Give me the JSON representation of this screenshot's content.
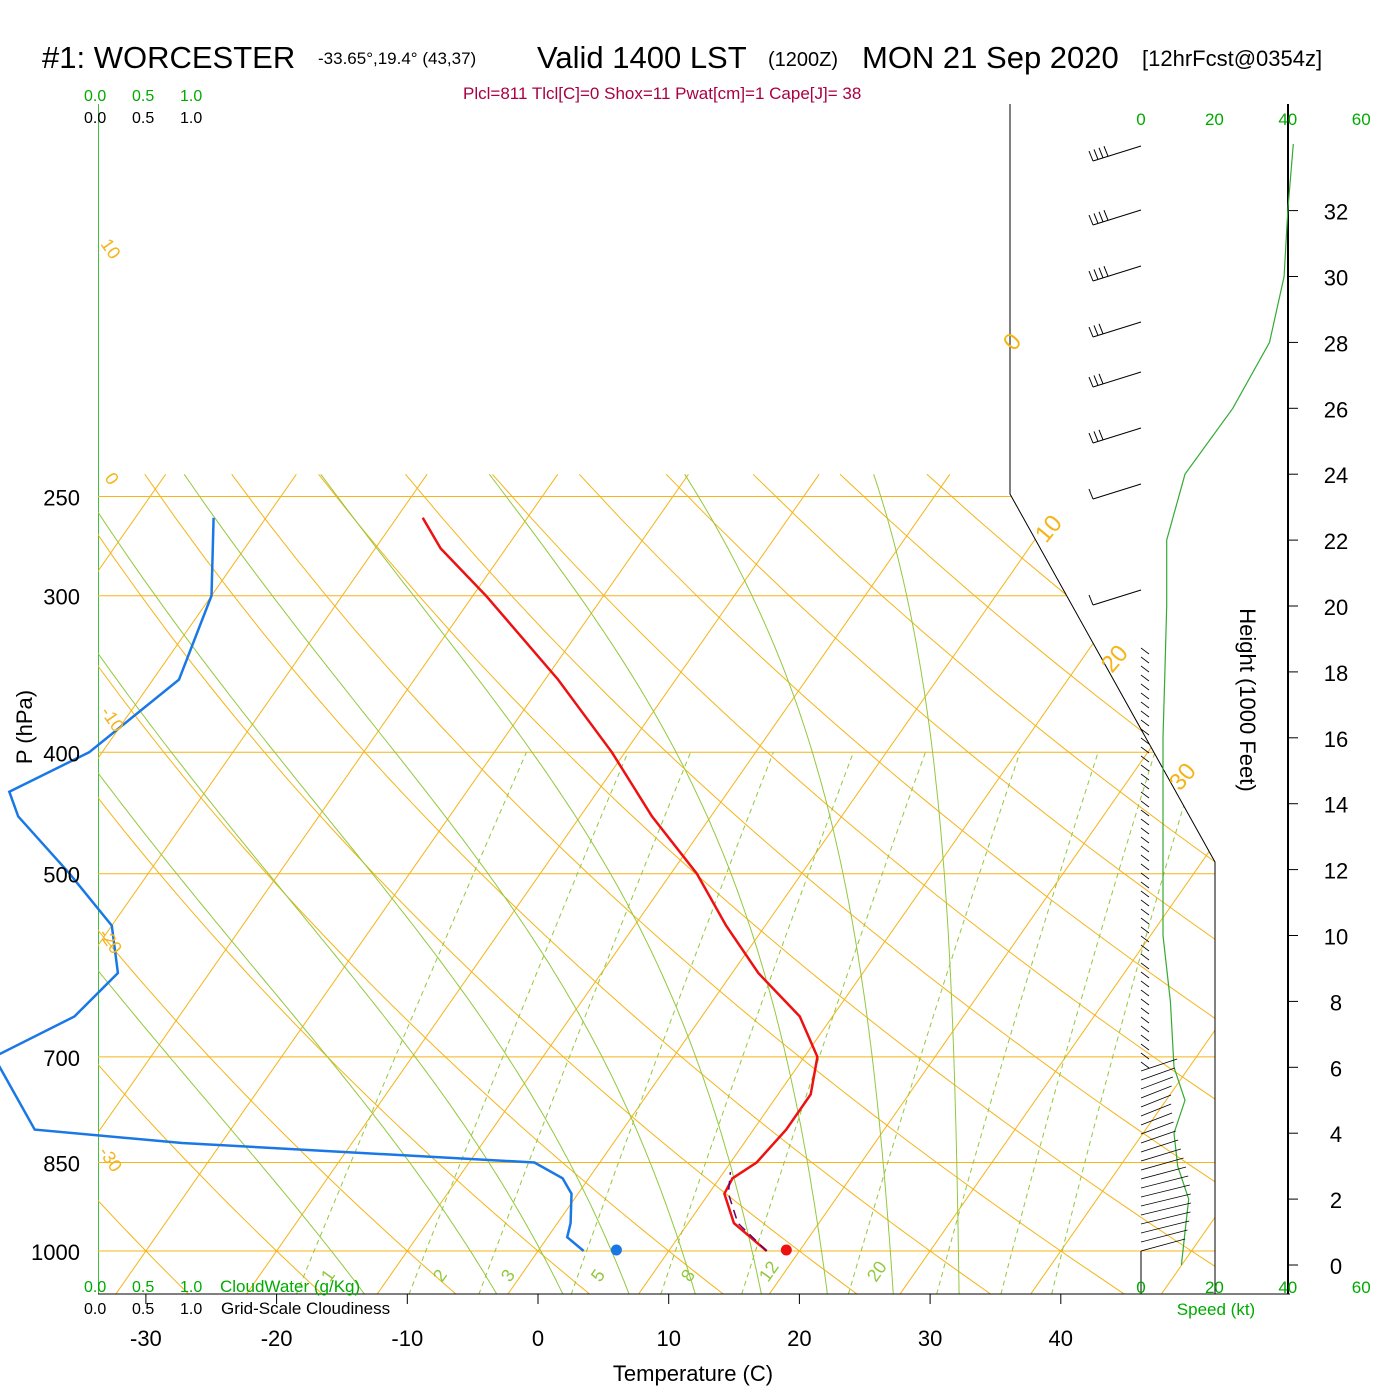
{
  "header": {
    "station": "#1: WORCESTER",
    "coords": "-33.65°,19.4° (43,37)",
    "valid": "Valid 1400 LST",
    "utc": "(1200Z)",
    "date": "MON 21 Sep 2020",
    "forecast": "[12hrFcst@0354z]",
    "indices": "Plcl=811 Tlcl[C]=0 Shox=11 Pwat[cm]=1 Cape[J]= 38"
  },
  "axes": {
    "xlabel": "Temperature (C)",
    "ylabel": "P (hPa)",
    "height_label": "Height (1000 Feet)",
    "speed_label": "Speed (kt)",
    "cloudwater_label": "CloudWater (g/Kg)",
    "cloudiness_label": "Grid-Scale Cloudiness",
    "cloud_ticks": [
      "0.0",
      "0.5",
      "1.0"
    ],
    "x_ticks": [
      "-30",
      "-20",
      "-10",
      "0",
      "10",
      "20",
      "30",
      "40"
    ],
    "p_ticks": [
      "250",
      "300",
      "400",
      "500",
      "700",
      "850",
      "1000"
    ],
    "height_ticks": [
      "0",
      "2",
      "4",
      "6",
      "8",
      "10",
      "12",
      "14",
      "16",
      "18",
      "20",
      "22",
      "24",
      "26",
      "28",
      "30",
      "32"
    ],
    "speed_ticks": [
      "0",
      "20",
      "40",
      "60"
    ],
    "isotherm_labels": [
      "10",
      "0",
      "-10",
      "-20",
      "-30",
      "0",
      "10",
      "20",
      "30"
    ],
    "mixratio_labels": [
      "1",
      "2",
      "3",
      "5",
      "8",
      "12",
      "20"
    ]
  },
  "chart_data": {
    "type": "skew-t",
    "title": "#1: WORCESTER Valid 1400 LST (1200Z) MON 21 Sep 2020",
    "pressure_range_hPa": [
      1000,
      250
    ],
    "temperature_range_C": [
      -33,
      36
    ],
    "temperature_profile": [
      {
        "p": 1000,
        "t": 17.5
      },
      {
        "p": 950,
        "t": 13.5
      },
      {
        "p": 900,
        "t": 11.2
      },
      {
        "p": 875,
        "t": 11.0
      },
      {
        "p": 850,
        "t": 12.0
      },
      {
        "p": 800,
        "t": 12.5
      },
      {
        "p": 750,
        "t": 12.5
      },
      {
        "p": 700,
        "t": 11.0
      },
      {
        "p": 650,
        "t": 7.5
      },
      {
        "p": 600,
        "t": 2.0
      },
      {
        "p": 550,
        "t": -3.0
      },
      {
        "p": 500,
        "t": -8.0
      },
      {
        "p": 450,
        "t": -14.5
      },
      {
        "p": 400,
        "t": -21.0
      },
      {
        "p": 350,
        "t": -29.0
      },
      {
        "p": 300,
        "t": -39.0
      },
      {
        "p": 275,
        "t": -45.0
      },
      {
        "p": 260,
        "t": -48.0
      }
    ],
    "dewpoint_profile": [
      {
        "p": 1000,
        "t": 3.5
      },
      {
        "p": 975,
        "t": 1.5
      },
      {
        "p": 950,
        "t": 1.0
      },
      {
        "p": 900,
        "t": -0.5
      },
      {
        "p": 875,
        "t": -2.0
      },
      {
        "p": 850,
        "t": -5.0
      },
      {
        "p": 820,
        "t": -33.0
      },
      {
        "p": 800,
        "t": -45.0
      },
      {
        "p": 700,
        "t": -52.0
      },
      {
        "p": 650,
        "t": -48.0
      },
      {
        "p": 600,
        "t": -47.0
      },
      {
        "p": 550,
        "t": -50.0
      },
      {
        "p": 500,
        "t": -56.0
      },
      {
        "p": 450,
        "t": -63.0
      },
      {
        "p": 430,
        "t": -65.0
      },
      {
        "p": 400,
        "t": -61.0
      },
      {
        "p": 350,
        "t": -58.0
      },
      {
        "p": 300,
        "t": -60.0
      },
      {
        "p": 260,
        "t": -64.0
      }
    ],
    "parcel_path": [
      {
        "p": 1000,
        "t": 17.5
      },
      {
        "p": 950,
        "t": 13.8
      },
      {
        "p": 900,
        "t": 11.5
      },
      {
        "p": 865,
        "t": 10.5
      }
    ],
    "surface_temperature_C": 19,
    "surface_dewpoint_C": 6,
    "wind_speed_kt": [
      {
        "h": 0,
        "s": 11
      },
      {
        "h": 1,
        "s": 12
      },
      {
        "h": 2,
        "s": 13
      },
      {
        "h": 3,
        "s": 10
      },
      {
        "h": 4,
        "s": 9
      },
      {
        "h": 5,
        "s": 12
      },
      {
        "h": 6,
        "s": 9
      },
      {
        "h": 8,
        "s": 8
      },
      {
        "h": 10,
        "s": 6
      },
      {
        "h": 12,
        "s": 6
      },
      {
        "h": 14,
        "s": 6
      },
      {
        "h": 16,
        "s": 6
      },
      {
        "h": 18,
        "s": 6.5
      },
      {
        "h": 20,
        "s": 7
      },
      {
        "h": 22,
        "s": 7
      },
      {
        "h": 24,
        "s": 12
      },
      {
        "h": 26,
        "s": 25
      },
      {
        "h": 28,
        "s": 35
      },
      {
        "h": 30,
        "s": 39
      },
      {
        "h": 32,
        "s": 40
      }
    ]
  },
  "colors": {
    "isotherm": "#f5b418",
    "adiabat": "#92c83e",
    "temperature": "#ee1111",
    "dewpoint": "#1a78e6",
    "parcel": "#660066",
    "green_text": "#00aa00",
    "indices_text": "#aa0044"
  }
}
